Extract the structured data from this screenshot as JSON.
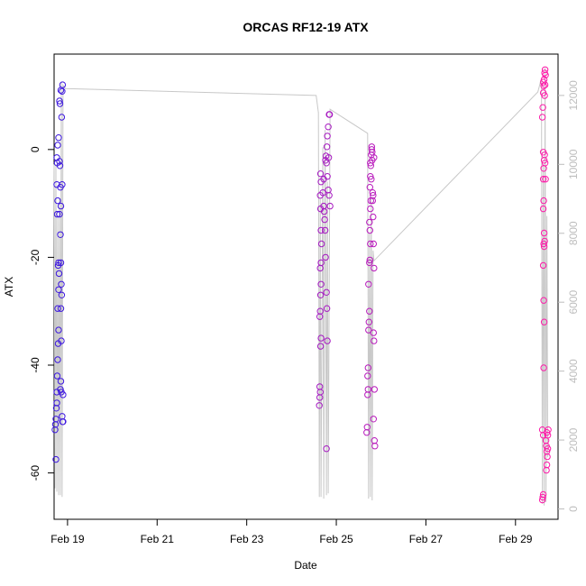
{
  "chart_data": {
    "type": "scatter",
    "title": "ORCAS RF12-19 ATX",
    "xlabel": "Date",
    "ylabel": "ATX",
    "xlim": [
      18.7,
      29.95
    ],
    "ylim": [
      -68.6,
      17.7
    ],
    "x_ticks": [
      {
        "value": 19,
        "label": "Feb 19"
      },
      {
        "value": 21,
        "label": "Feb 21"
      },
      {
        "value": 23,
        "label": "Feb 23"
      },
      {
        "value": 25,
        "label": "Feb 25"
      },
      {
        "value": 27,
        "label": "Feb 27"
      },
      {
        "value": 29,
        "label": "Feb 29"
      }
    ],
    "y_ticks": [
      -60,
      -40,
      -20,
      0
    ],
    "y2_ticks": [
      0,
      2000,
      4000,
      6000,
      8000,
      10000,
      12000
    ],
    "y2lim": [
      -300,
      13200
    ],
    "grid": false,
    "series": [
      {
        "role": "ATX",
        "style": "points",
        "color_start": "#3a17e0",
        "color_end": "#ff1aa8",
        "points": [
          [
            18.72,
            -52
          ],
          [
            18.73,
            -51
          ],
          [
            18.74,
            -50
          ],
          [
            18.75,
            -48
          ],
          [
            18.76,
            -47
          ],
          [
            18.74,
            -57.5
          ],
          [
            18.76,
            -45
          ],
          [
            18.77,
            -42
          ],
          [
            18.78,
            -39
          ],
          [
            18.79,
            -36
          ],
          [
            18.8,
            -33.5
          ],
          [
            18.78,
            -29.5
          ],
          [
            18.8,
            -26
          ],
          [
            18.81,
            -23
          ],
          [
            18.79,
            -21.5
          ],
          [
            18.8,
            -21
          ],
          [
            18.77,
            -12
          ],
          [
            18.78,
            -9.5
          ],
          [
            18.76,
            -6.5
          ],
          [
            18.77,
            -2.5
          ],
          [
            18.76,
            -1.5
          ],
          [
            18.78,
            0.8
          ],
          [
            18.8,
            2.2
          ],
          [
            18.82,
            -2.2
          ],
          [
            18.83,
            -3
          ],
          [
            18.84,
            -7
          ],
          [
            18.85,
            -10.5
          ],
          [
            18.82,
            -12
          ],
          [
            18.84,
            -15.8
          ],
          [
            18.85,
            -21
          ],
          [
            18.86,
            -25
          ],
          [
            18.87,
            -27
          ],
          [
            18.85,
            -29.5
          ],
          [
            18.86,
            -35.5
          ],
          [
            18.85,
            -43
          ],
          [
            18.84,
            -44.5
          ],
          [
            18.86,
            -45
          ],
          [
            18.88,
            -49.5
          ],
          [
            18.89,
            -50.5
          ],
          [
            18.9,
            -50.5
          ],
          [
            18.9,
            -45.5
          ],
          [
            18.88,
            -6.5
          ],
          [
            18.87,
            6
          ],
          [
            18.83,
            8.5
          ],
          [
            18.82,
            9
          ],
          [
            18.85,
            11
          ],
          [
            18.88,
            10.8
          ],
          [
            18.89,
            12
          ],
          [
            24.62,
            -47.5
          ],
          [
            24.63,
            -46
          ],
          [
            24.64,
            -45
          ],
          [
            24.63,
            -44
          ],
          [
            24.65,
            -36.5
          ],
          [
            24.66,
            -35
          ],
          [
            24.63,
            -31
          ],
          [
            24.64,
            -30
          ],
          [
            24.65,
            -27
          ],
          [
            24.66,
            -25
          ],
          [
            24.64,
            -22
          ],
          [
            24.66,
            -21
          ],
          [
            24.67,
            -17.5
          ],
          [
            24.66,
            -15
          ],
          [
            24.65,
            -11
          ],
          [
            24.64,
            -8.5
          ],
          [
            24.66,
            -6
          ],
          [
            24.65,
            -4.5
          ],
          [
            24.7,
            -8
          ],
          [
            24.72,
            -10.5
          ],
          [
            24.73,
            -11.5
          ],
          [
            24.74,
            -13
          ],
          [
            24.75,
            -15
          ],
          [
            24.76,
            -20
          ],
          [
            24.78,
            -26.5
          ],
          [
            24.79,
            -29.5
          ],
          [
            24.8,
            -35.5
          ],
          [
            24.78,
            -55.5
          ],
          [
            24.76,
            -2
          ],
          [
            24.77,
            -1.2
          ],
          [
            24.79,
            0.5
          ],
          [
            24.8,
            2.5
          ],
          [
            24.82,
            4.2
          ],
          [
            24.84,
            6.5
          ],
          [
            24.85,
            6.5
          ],
          [
            24.83,
            -1.5
          ],
          [
            24.8,
            -5
          ],
          [
            24.82,
            -7.5
          ],
          [
            24.84,
            -8.5
          ],
          [
            24.86,
            -10.5
          ],
          [
            24.78,
            -2.5
          ],
          [
            24.72,
            -5.5
          ],
          [
            25.68,
            -52.5
          ],
          [
            25.69,
            -51.5
          ],
          [
            25.7,
            -45.5
          ],
          [
            25.71,
            -44.5
          ],
          [
            25.7,
            -42
          ],
          [
            25.71,
            -40.5
          ],
          [
            25.72,
            -33.5
          ],
          [
            25.73,
            -32
          ],
          [
            25.74,
            -30
          ],
          [
            25.72,
            -25
          ],
          [
            25.74,
            -21
          ],
          [
            25.75,
            -20.5
          ],
          [
            25.76,
            -17.5
          ],
          [
            25.75,
            -15
          ],
          [
            25.74,
            -13.5
          ],
          [
            25.76,
            -11
          ],
          [
            25.77,
            -9.5
          ],
          [
            25.75,
            -7
          ],
          [
            25.76,
            -5
          ],
          [
            25.77,
            -3
          ],
          [
            25.76,
            -2.5
          ],
          [
            25.78,
            -1
          ],
          [
            25.79,
            0
          ],
          [
            25.8,
            -0.5
          ],
          [
            25.79,
            0.5
          ],
          [
            25.8,
            -2
          ],
          [
            25.81,
            -8
          ],
          [
            25.82,
            -8.5
          ],
          [
            25.81,
            -9.5
          ],
          [
            25.82,
            -12.5
          ],
          [
            25.83,
            -17.5
          ],
          [
            25.84,
            -22
          ],
          [
            25.83,
            -34
          ],
          [
            25.84,
            -35.5
          ],
          [
            25.85,
            -44.5
          ],
          [
            25.83,
            -50
          ],
          [
            25.85,
            -54
          ],
          [
            25.86,
            -55
          ],
          [
            25.84,
            -1.5
          ],
          [
            25.78,
            -5.5
          ],
          [
            29.6,
            -65
          ],
          [
            29.61,
            -64.5
          ],
          [
            29.62,
            -64
          ],
          [
            29.6,
            -52
          ],
          [
            29.62,
            -53
          ],
          [
            29.63,
            -40.5
          ],
          [
            29.64,
            -32
          ],
          [
            29.63,
            -28
          ],
          [
            29.62,
            -21.5
          ],
          [
            29.64,
            -18
          ],
          [
            29.63,
            -17.5
          ],
          [
            29.65,
            -17
          ],
          [
            29.64,
            -15.5
          ],
          [
            29.62,
            -11
          ],
          [
            29.63,
            -9.5
          ],
          [
            29.62,
            -5.5
          ],
          [
            29.63,
            -3.5
          ],
          [
            29.64,
            -2
          ],
          [
            29.62,
            -0.5
          ],
          [
            29.6,
            6
          ],
          [
            29.61,
            7.8
          ],
          [
            29.62,
            10.5
          ],
          [
            29.63,
            11.8
          ],
          [
            29.62,
            12.5
          ],
          [
            29.64,
            13
          ],
          [
            29.65,
            14.2
          ],
          [
            29.66,
            14.8
          ],
          [
            29.67,
            13.8
          ],
          [
            29.66,
            12
          ],
          [
            29.65,
            10
          ],
          [
            29.67,
            -5.5
          ],
          [
            29.68,
            -54
          ],
          [
            29.69,
            -55
          ],
          [
            29.7,
            -56
          ],
          [
            29.71,
            -57
          ],
          [
            29.7,
            -58.5
          ],
          [
            29.69,
            -59.5
          ],
          [
            29.7,
            -52.5
          ],
          [
            29.72,
            -53
          ],
          [
            29.73,
            -52
          ],
          [
            29.72,
            -55.5
          ],
          [
            29.66,
            -2.5
          ],
          [
            29.65,
            -1
          ]
        ]
      },
      {
        "role": "secondary-axis-trace",
        "style": "line",
        "color": "#c8c8c8",
        "points": [
          [
            18.7,
            10000
          ],
          [
            18.72,
            600
          ],
          [
            18.74,
            10000
          ],
          [
            18.76,
            500
          ],
          [
            18.78,
            8500
          ],
          [
            18.8,
            400
          ],
          [
            18.82,
            9000
          ],
          [
            18.84,
            400
          ],
          [
            18.86,
            12400
          ],
          [
            18.88,
            350
          ],
          [
            18.9,
            12300
          ],
          [
            18.95,
            12200
          ],
          [
            24.55,
            12000
          ],
          [
            24.6,
            11500
          ],
          [
            24.62,
            350
          ],
          [
            24.64,
            9000
          ],
          [
            24.66,
            350
          ],
          [
            24.7,
            10500
          ],
          [
            24.72,
            300
          ],
          [
            24.75,
            11000
          ],
          [
            24.78,
            400
          ],
          [
            24.8,
            9500
          ],
          [
            24.82,
            450
          ],
          [
            24.86,
            11600
          ],
          [
            25.7,
            10900
          ],
          [
            25.72,
            300
          ],
          [
            25.74,
            8000
          ],
          [
            25.76,
            350
          ],
          [
            25.78,
            9000
          ],
          [
            25.8,
            250
          ],
          [
            25.82,
            7500
          ],
          [
            25.84,
            7200
          ],
          [
            29.5,
            12100
          ],
          [
            29.58,
            12500
          ],
          [
            29.6,
            150
          ],
          [
            29.62,
            10000
          ],
          [
            29.64,
            100
          ],
          [
            29.66,
            12800
          ],
          [
            29.68,
            200
          ],
          [
            29.7,
            8500
          ],
          [
            29.72,
            1500
          ]
        ]
      }
    ]
  }
}
